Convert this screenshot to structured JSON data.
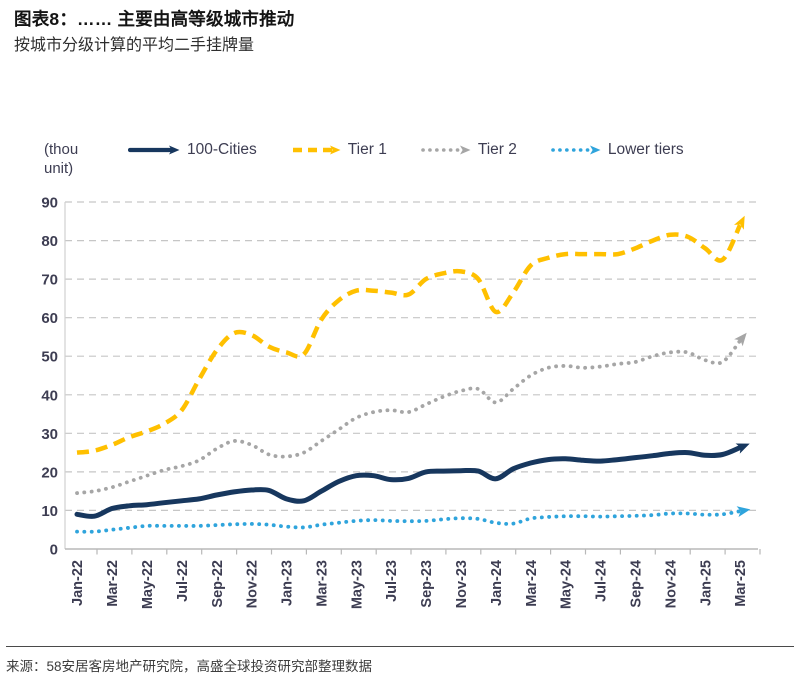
{
  "header": {
    "title": "图表8：…… 主要由高等级城市推动",
    "subtitle": "按城市分级计算的平均二手挂牌量"
  },
  "legend": {
    "unit_label_line1": "(thou",
    "unit_label_line2": "unit)"
  },
  "footer": {
    "source": "来源：58安居客房地产研究院，高盛全球投资研究部整理数据"
  },
  "colors": {
    "navy": "#17375E",
    "gold": "#FFC000",
    "gray": "#A6A6A6",
    "light_blue": "#2FA4DC",
    "axis_text": "#3D3D52",
    "gridline": "#C6C6C6",
    "axis_line": "#B8B8B8",
    "plot_border": "#D0D0D0"
  },
  "chart_data": {
    "type": "line",
    "title": "按城市分级计算的平均二手挂牌量",
    "unit": "thou unit",
    "ylim": [
      0,
      90
    ],
    "ytick_step": 10,
    "yticks": [
      0,
      10,
      20,
      30,
      40,
      50,
      60,
      70,
      80,
      90
    ],
    "grid": "horizontal-dashed",
    "legend_position": "top",
    "x": [
      "Jan-22",
      "Feb-22",
      "Mar-22",
      "Apr-22",
      "May-22",
      "Jun-22",
      "Jul-22",
      "Aug-22",
      "Sep-22",
      "Oct-22",
      "Nov-22",
      "Dec-22",
      "Jan-23",
      "Feb-23",
      "Mar-23",
      "Apr-23",
      "May-23",
      "Jun-23",
      "Jul-23",
      "Aug-23",
      "Sep-23",
      "Oct-23",
      "Nov-23",
      "Dec-23",
      "Jan-24",
      "Feb-24",
      "Mar-24",
      "Apr-24",
      "May-24",
      "Jun-24",
      "Jul-24",
      "Aug-24",
      "Sep-24",
      "Oct-24",
      "Nov-24",
      "Dec-24",
      "Jan-25",
      "Feb-25",
      "Mar-25"
    ],
    "x_tick_labels": [
      "Jan-22",
      "Mar-22",
      "May-22",
      "Jul-22",
      "Sep-22",
      "Nov-22",
      "Jan-23",
      "Mar-23",
      "May-23",
      "Jul-23",
      "Sep-23",
      "Nov-23",
      "Jan-24",
      "Mar-24",
      "May-24",
      "Jul-24",
      "Sep-24",
      "Nov-24",
      "Jan-25",
      "Mar-25"
    ],
    "series": [
      {
        "name": "100-Cities",
        "color": "#17375E",
        "style": "solid",
        "values": [
          9,
          8.5,
          10.5,
          11.2,
          11.5,
          12,
          12.5,
          13,
          14,
          14.8,
          15.3,
          15.2,
          13,
          12.5,
          15,
          17.5,
          19,
          19,
          18,
          18.3,
          20,
          20.2,
          20.3,
          20.2,
          18.2,
          20.8,
          22.3,
          23.2,
          23.4,
          23,
          22.8,
          23.2,
          23.7,
          24.2,
          24.8,
          25,
          24.3,
          24.5,
          26.3
        ]
      },
      {
        "name": "Tier 1",
        "color": "#FFC000",
        "style": "dashed",
        "values": [
          25,
          25.5,
          27,
          29,
          30.5,
          32.5,
          36,
          44,
          51.5,
          56,
          55.5,
          52.5,
          51,
          50.5,
          59.5,
          64.5,
          67,
          67,
          66.5,
          66,
          70,
          71.5,
          72,
          70,
          61.5,
          66.5,
          73.5,
          75.5,
          76.5,
          76.5,
          76.5,
          76.5,
          78,
          80,
          81.5,
          81,
          78,
          75,
          84
        ]
      },
      {
        "name": "Tier 2",
        "color": "#A6A6A6",
        "style": "dotted",
        "values": [
          14.5,
          15,
          16,
          17.5,
          19,
          20.5,
          21.5,
          23,
          26,
          28,
          27,
          24.5,
          24,
          25,
          28,
          31,
          34,
          35.5,
          36,
          35.5,
          37.5,
          39.5,
          41,
          41.5,
          38,
          41.5,
          45,
          47,
          47.5,
          47,
          47.3,
          48,
          48.5,
          50,
          51,
          51,
          49,
          48.5,
          54
        ]
      },
      {
        "name": "Lower tiers",
        "color": "#2FA4DC",
        "style": "dotted",
        "values": [
          4.5,
          4.5,
          5,
          5.5,
          6,
          6,
          6,
          6,
          6.2,
          6.4,
          6.5,
          6.3,
          5.8,
          5.6,
          6.3,
          6.8,
          7.3,
          7.5,
          7.3,
          7.2,
          7.3,
          7.7,
          8,
          7.8,
          6.8,
          6.6,
          7.9,
          8.3,
          8.5,
          8.5,
          8.4,
          8.5,
          8.6,
          8.8,
          9.2,
          9.2,
          8.9,
          9,
          9.8
        ]
      }
    ]
  }
}
